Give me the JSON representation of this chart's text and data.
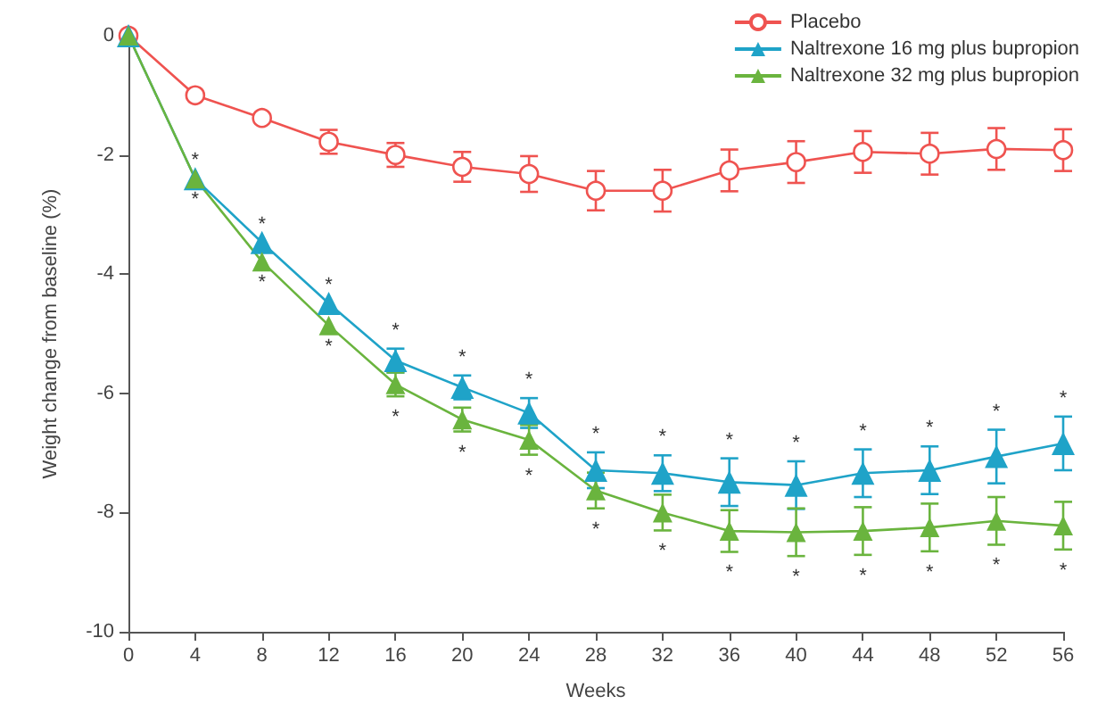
{
  "chart_data": {
    "type": "line",
    "xlabel": "Weeks",
    "ylabel": "Weight change from baseline (%)",
    "x": [
      0,
      4,
      8,
      12,
      16,
      20,
      24,
      28,
      32,
      36,
      40,
      44,
      48,
      52,
      56
    ],
    "series": [
      {
        "name": "Placebo",
        "color": "#ef5350",
        "marker": "circle",
        "values": [
          0,
          -1.0,
          -1.38,
          -1.78,
          -2.0,
          -2.2,
          -2.32,
          -2.6,
          -2.6,
          -2.26,
          -2.12,
          -1.95,
          -1.98,
          -1.9,
          -1.92
        ],
        "errors": [
          null,
          null,
          null,
          0.2,
          0.2,
          0.25,
          0.3,
          0.33,
          0.35,
          0.35,
          0.35,
          0.35,
          0.35,
          0.35,
          0.35
        ]
      },
      {
        "name": "Naltrexone 16 mg plus bupropion",
        "color": "#1fa3c8",
        "marker": "triangle",
        "values": [
          0,
          -2.4,
          -3.47,
          -4.49,
          -5.45,
          -5.9,
          -6.33,
          -7.29,
          -7.34,
          -7.49,
          -7.54,
          -7.34,
          -7.29,
          -7.06,
          -6.84
        ],
        "errors": [
          null,
          null,
          null,
          null,
          0.2,
          0.2,
          0.25,
          0.3,
          0.3,
          0.4,
          0.4,
          0.4,
          0.4,
          0.45,
          0.45
        ]
      },
      {
        "name": "Naltrexone 32 mg plus bupropion",
        "color": "#6ab43e",
        "marker": "triangle",
        "values": [
          0,
          -2.4,
          -3.79,
          -4.86,
          -5.85,
          -6.44,
          -6.78,
          -7.63,
          -8.0,
          -8.31,
          -8.33,
          -8.31,
          -8.25,
          -8.14,
          -8.22
        ],
        "errors": [
          null,
          null,
          null,
          null,
          0.2,
          0.2,
          0.25,
          0.3,
          0.3,
          0.35,
          0.4,
          0.4,
          0.4,
          0.4,
          0.4
        ]
      }
    ],
    "annotations": [
      {
        "text": "*",
        "x": 4,
        "y": -2.4
      },
      {
        "text": "*",
        "x": 8,
        "y": -3.47
      },
      {
        "text": "*",
        "x": 12,
        "y": -4.49
      },
      {
        "text": "*",
        "x": 16,
        "y": -5.45
      },
      {
        "text": "*",
        "x": 20,
        "y": -5.9
      },
      {
        "text": "*",
        "x": 24,
        "y": -6.33
      },
      {
        "text": "*",
        "x": 28,
        "y": -7.29
      },
      {
        "text": "*",
        "x": 32,
        "y": -7.34
      },
      {
        "text": "*",
        "x": 36,
        "y": -7.49
      },
      {
        "text": "*",
        "x": 40,
        "y": -7.54
      },
      {
        "text": "*",
        "x": 44,
        "y": -7.34
      },
      {
        "text": "*",
        "x": 48,
        "y": -7.29
      },
      {
        "text": "*",
        "x": 52,
        "y": -7.06
      },
      {
        "text": "*",
        "x": 56,
        "y": -6.84
      },
      {
        "text": "*",
        "x": 4,
        "y": -2.4
      },
      {
        "text": "*",
        "x": 8,
        "y": -3.79
      },
      {
        "text": "*",
        "x": 12,
        "y": -4.86
      },
      {
        "text": "*",
        "x": 16,
        "y": -5.85
      },
      {
        "text": "*",
        "x": 20,
        "y": -6.44
      },
      {
        "text": "*",
        "x": 24,
        "y": -6.78
      },
      {
        "text": "*",
        "x": 28,
        "y": -7.63
      },
      {
        "text": "*",
        "x": 32,
        "y": -8.0
      },
      {
        "text": "*",
        "x": 36,
        "y": -8.31
      },
      {
        "text": "*",
        "x": 40,
        "y": -8.33
      },
      {
        "text": "*",
        "x": 44,
        "y": -8.31
      },
      {
        "text": "*",
        "x": 48,
        "y": -8.25
      },
      {
        "text": "*",
        "x": 52,
        "y": -8.14
      },
      {
        "text": "*",
        "x": 56,
        "y": -8.22
      }
    ],
    "xlim": [
      0,
      56
    ],
    "xticks": [
      0,
      4,
      8,
      12,
      16,
      20,
      24,
      28,
      32,
      36,
      40,
      44,
      48,
      52,
      56
    ],
    "ylim": [
      -10,
      0
    ],
    "yticks": [
      -10,
      -8,
      -6,
      -4,
      -2,
      0
    ],
    "grid": false,
    "legend": "top right"
  }
}
